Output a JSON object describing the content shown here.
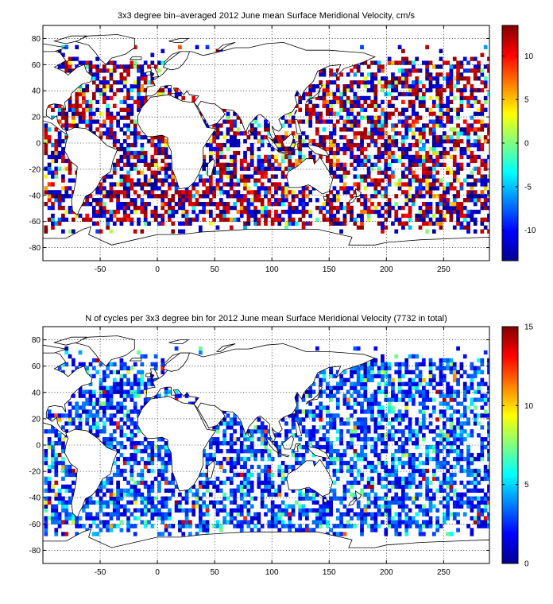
{
  "chart_data": [
    {
      "type": "heatmap",
      "title": "3x3 degree bin–averaged 2012 June mean Surface Meridional Velocity, cm/s",
      "xlim": [
        -100,
        290
      ],
      "ylim": [
        -90,
        90
      ],
      "x_ticks": [
        "-50",
        "0",
        "50",
        "100",
        "150",
        "200",
        "250"
      ],
      "y_ticks": [
        "80",
        "60",
        "40",
        "20",
        "0",
        "-20",
        "-40",
        "-60",
        "-80"
      ],
      "colorbar": {
        "range": [
          -13.5,
          13.5
        ],
        "ticks": [
          "10",
          "5",
          "0",
          "-5",
          "-10"
        ],
        "colormap": "jet"
      },
      "grid": true,
      "bin_size_deg": 3,
      "seed": 7
    },
    {
      "type": "heatmap",
      "title": "N of cycles per 3x3 degree bin for 2012 June mean Surface Meridional Velocity (7732 in total)",
      "xlim": [
        -100,
        290
      ],
      "ylim": [
        -90,
        90
      ],
      "x_ticks": [
        "-50",
        "0",
        "50",
        "100",
        "150",
        "200",
        "250"
      ],
      "y_ticks": [
        "80",
        "60",
        "40",
        "20",
        "0",
        "-20",
        "-40",
        "-60",
        "-80"
      ],
      "colorbar": {
        "range": [
          0,
          15
        ],
        "ticks": [
          "15",
          "10",
          "5",
          "0"
        ],
        "colormap": "jet"
      },
      "grid": true,
      "bin_size_deg": 3,
      "seed": 23
    }
  ]
}
